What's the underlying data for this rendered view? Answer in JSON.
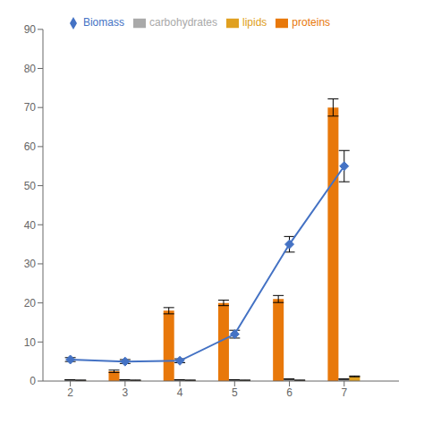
{
  "chart_data": {
    "type": "bar",
    "x": [
      2,
      3,
      4,
      5,
      6,
      7
    ],
    "xlim": [
      1.5,
      8.0
    ],
    "xticks": [
      2,
      3,
      4,
      5,
      6,
      7
    ],
    "ylim": [
      0,
      90
    ],
    "yticks": [
      0,
      10,
      20,
      30,
      40,
      50,
      60,
      70,
      80,
      90
    ],
    "grid": false,
    "legend": "top",
    "series": [
      {
        "name": "proteins",
        "type": "bar",
        "color": "#E8780A",
        "values": [
          0.0,
          2.5,
          18.0,
          20.0,
          21.0,
          70.0
        ],
        "errors": [
          0.05,
          0.3,
          0.8,
          0.7,
          0.9,
          2.2
        ]
      },
      {
        "name": "carbohydrates",
        "type": "bar",
        "color": "#A9A9A9",
        "values": [
          0.3,
          0.3,
          0.3,
          0.3,
          0.5,
          0.5
        ],
        "errors": [
          0.05,
          0.05,
          0.05,
          0.05,
          0.05,
          0.05
        ]
      },
      {
        "name": "lipids",
        "type": "bar",
        "color": "#E0A020",
        "values": [
          0.2,
          0.2,
          0.2,
          0.2,
          0.2,
          1.2
        ],
        "errors": [
          0.05,
          0.05,
          0.05,
          0.05,
          0.05,
          0.1
        ]
      },
      {
        "name": "Biomass",
        "type": "line",
        "color": "#4472C4",
        "marker": "diamond",
        "values": [
          5.5,
          5.0,
          5.2,
          12.0,
          35.0,
          55.0
        ],
        "errors": [
          0.5,
          0.5,
          0.5,
          1.0,
          2.0,
          4.0
        ]
      }
    ]
  }
}
